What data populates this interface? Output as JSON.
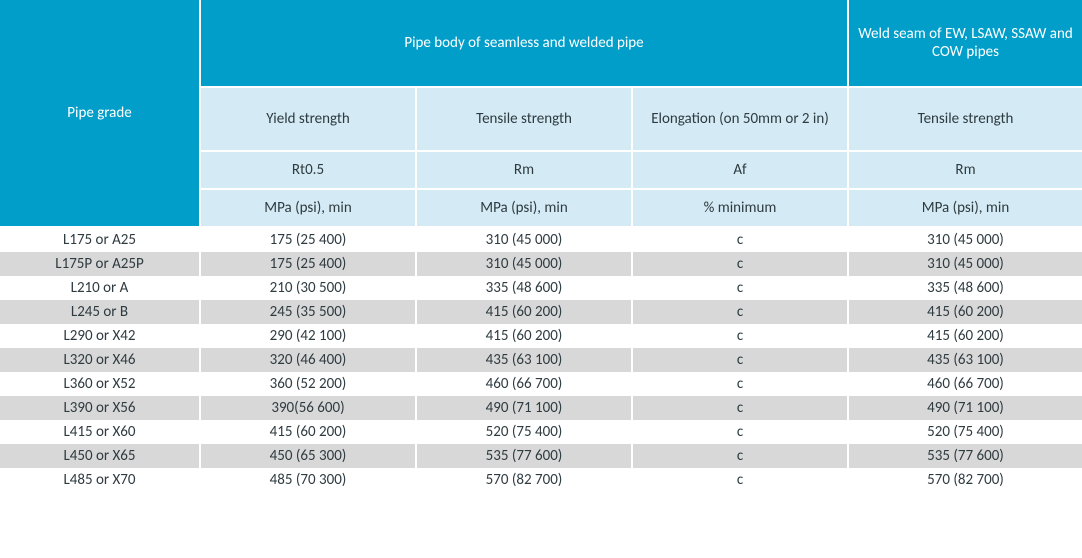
{
  "colors": {
    "teal": "#009ec9",
    "light": "#d4eaf5",
    "row_alt": "#d8d8d8",
    "row_bg": "#ffffff",
    "divider": "#ffffff",
    "text_dark": "#2e3b40",
    "text_light": "#ffffff"
  },
  "font": {
    "family": "Segoe UI / Calibri",
    "size_pt": 11
  },
  "header": {
    "pipe_grade": "Pipe grade",
    "group_body": "Pipe body of seamless and welded pipe",
    "group_weld": "Weld seam of EW, LSAW, SSAW and COW pipes",
    "cols": {
      "yield": {
        "label": "Yield strength",
        "symbol": "Rt0.5",
        "unit": "MPa (psi), min"
      },
      "tensile": {
        "label": "Tensile strength",
        "symbol": "Rm",
        "unit": "MPa (psi), min"
      },
      "elong": {
        "label": "Elongation\n(on 50mm or 2 in)",
        "symbol": "Af",
        "unit": "% minimum"
      },
      "weld_tensile": {
        "label": "Tensile strength",
        "symbol": "Rm",
        "unit": "MPa (psi), min"
      }
    }
  },
  "rows": [
    {
      "grade": "L175 or A25",
      "yield": "175 (25 400)",
      "tensile": "310 (45 000)",
      "elong": "c",
      "weld": "310 (45 000)"
    },
    {
      "grade": "L175P or A25P",
      "yield": "175 (25 400)",
      "tensile": "310 (45 000)",
      "elong": "c",
      "weld": "310 (45 000)"
    },
    {
      "grade": "L210 or A",
      "yield": "210 (30 500)",
      "tensile": "335 (48 600)",
      "elong": "c",
      "weld": "335 (48 600)"
    },
    {
      "grade": "L245 or B",
      "yield": "245 (35 500)",
      "tensile": "415 (60 200)",
      "elong": "c",
      "weld": "415 (60 200)"
    },
    {
      "grade": "L290 or X42",
      "yield": "290 (42 100)",
      "tensile": "415 (60 200)",
      "elong": "c",
      "weld": "415 (60 200)"
    },
    {
      "grade": "L320 or X46",
      "yield": "320 (46 400)",
      "tensile": "435 (63 100)",
      "elong": "c",
      "weld": "435 (63 100)"
    },
    {
      "grade": "L360 or X52",
      "yield": "360 (52 200)",
      "tensile": "460 (66 700)",
      "elong": "c",
      "weld": "460 (66 700)"
    },
    {
      "grade": "L390 or X56",
      "yield": "390(56 600)",
      "tensile": "490 (71 100)",
      "elong": "c",
      "weld": "490 (71 100)"
    },
    {
      "grade": "L415 or X60",
      "yield": "415 (60 200)",
      "tensile": "520 (75 400)",
      "elong": "c",
      "weld": "520 (75 400)"
    },
    {
      "grade": "L450 or X65",
      "yield": "450 (65 300)",
      "tensile": "535 (77 600)",
      "elong": "c",
      "weld": "535 (77 600)"
    },
    {
      "grade": "L485 or X70",
      "yield": "485 (70 300)",
      "tensile": "570 (82 700)",
      "elong": "c",
      "weld": "570 (82 700)"
    }
  ]
}
